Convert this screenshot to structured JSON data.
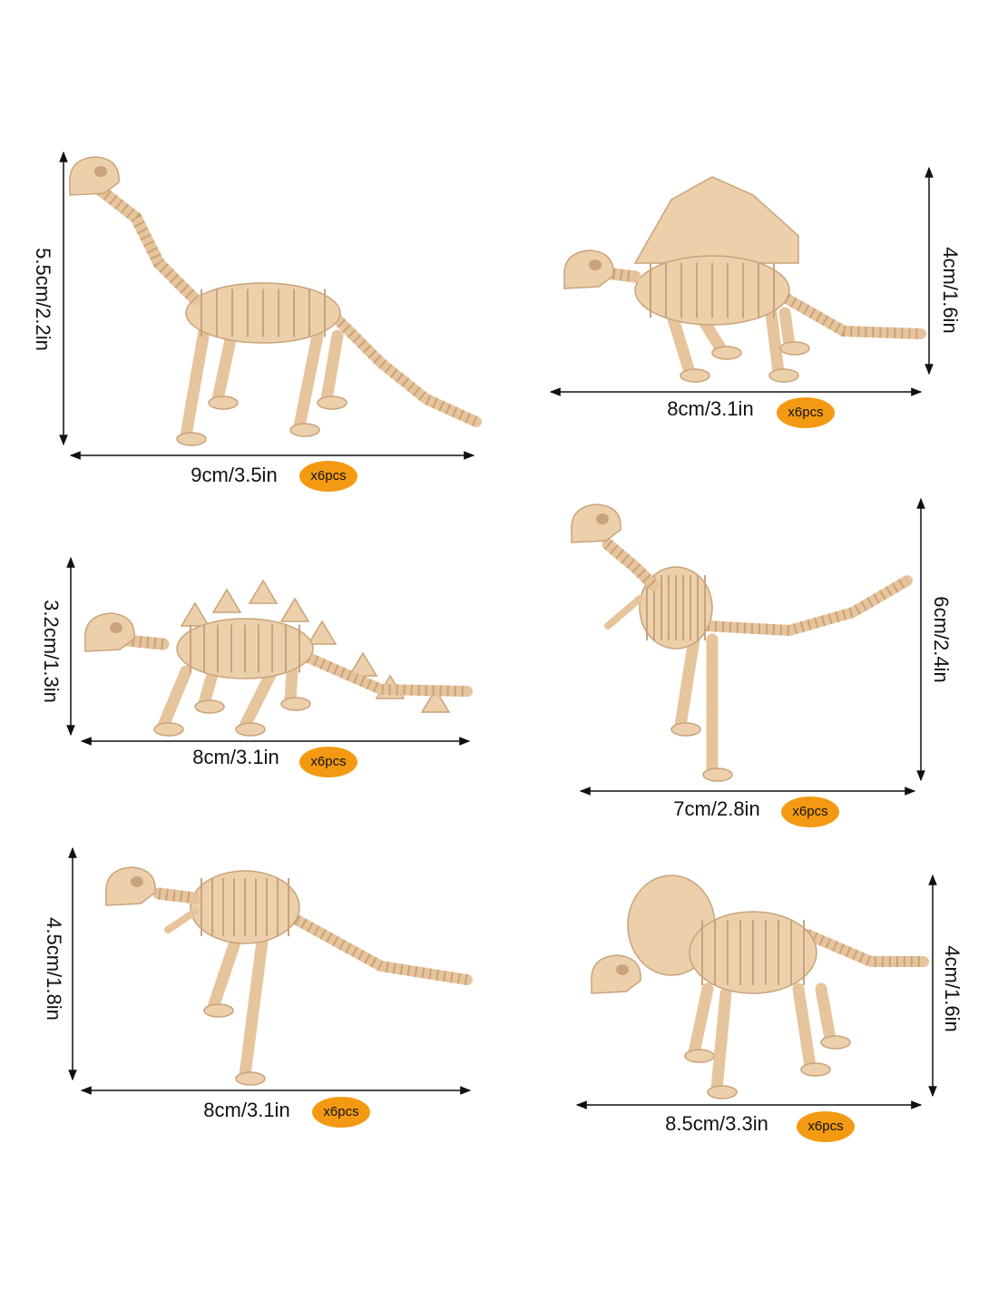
{
  "items": [
    {
      "width": "9cm/3.5in",
      "height": "5.5cm/2.2in",
      "quantity": "x6pcs"
    },
    {
      "width": "8cm/3.1in",
      "height": "4cm/1.6in",
      "quantity": "x6pcs"
    },
    {
      "width": "8cm/3.1in",
      "height": "3.2cm/1.3in",
      "quantity": "x6pcs"
    },
    {
      "width": "7cm/2.8in",
      "height": "6cm/2.4in",
      "quantity": "x6pcs"
    },
    {
      "width": "8cm/3.1in",
      "height": "4.5cm/1.8in",
      "quantity": "x6pcs"
    },
    {
      "width": "8.5cm/3.3in",
      "height": "4cm/1.6in",
      "quantity": "x6pcs"
    }
  ]
}
